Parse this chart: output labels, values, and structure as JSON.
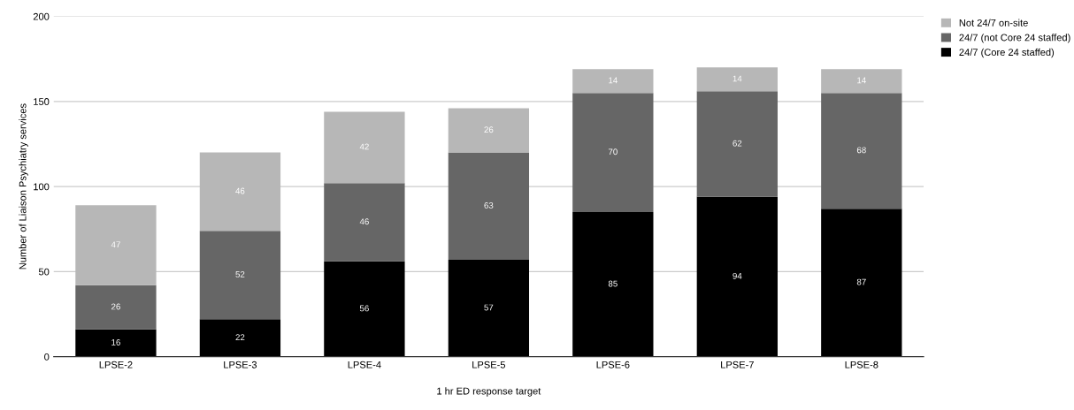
{
  "chart_data": {
    "type": "bar",
    "stacked": true,
    "xlabel": "1 hr ED response target",
    "ylabel": "Number of Liaison Psychiatry services",
    "categories": [
      "LPSE-2",
      "LPSE-3",
      "LPSE-4",
      "LPSE-5",
      "LPSE-6",
      "LPSE-7",
      "LPSE-8"
    ],
    "series": [
      {
        "name": "24/7 (Core 24 staffed)",
        "color": "#000000",
        "values": [
          16,
          22,
          56,
          57,
          85,
          94,
          87
        ]
      },
      {
        "name": "24/7 (not Core 24 staffed)",
        "color": "#666666",
        "values": [
          26,
          52,
          46,
          63,
          70,
          62,
          68
        ]
      },
      {
        "name": "Not 24/7 on-site",
        "color": "#b7b7b7",
        "values": [
          47,
          46,
          42,
          26,
          14,
          14,
          14
        ]
      }
    ],
    "ylim": [
      0,
      200
    ],
    "yticks": [
      0,
      50,
      100,
      150,
      200
    ],
    "grid": "y",
    "legend": "top right",
    "data_labels": true
  }
}
